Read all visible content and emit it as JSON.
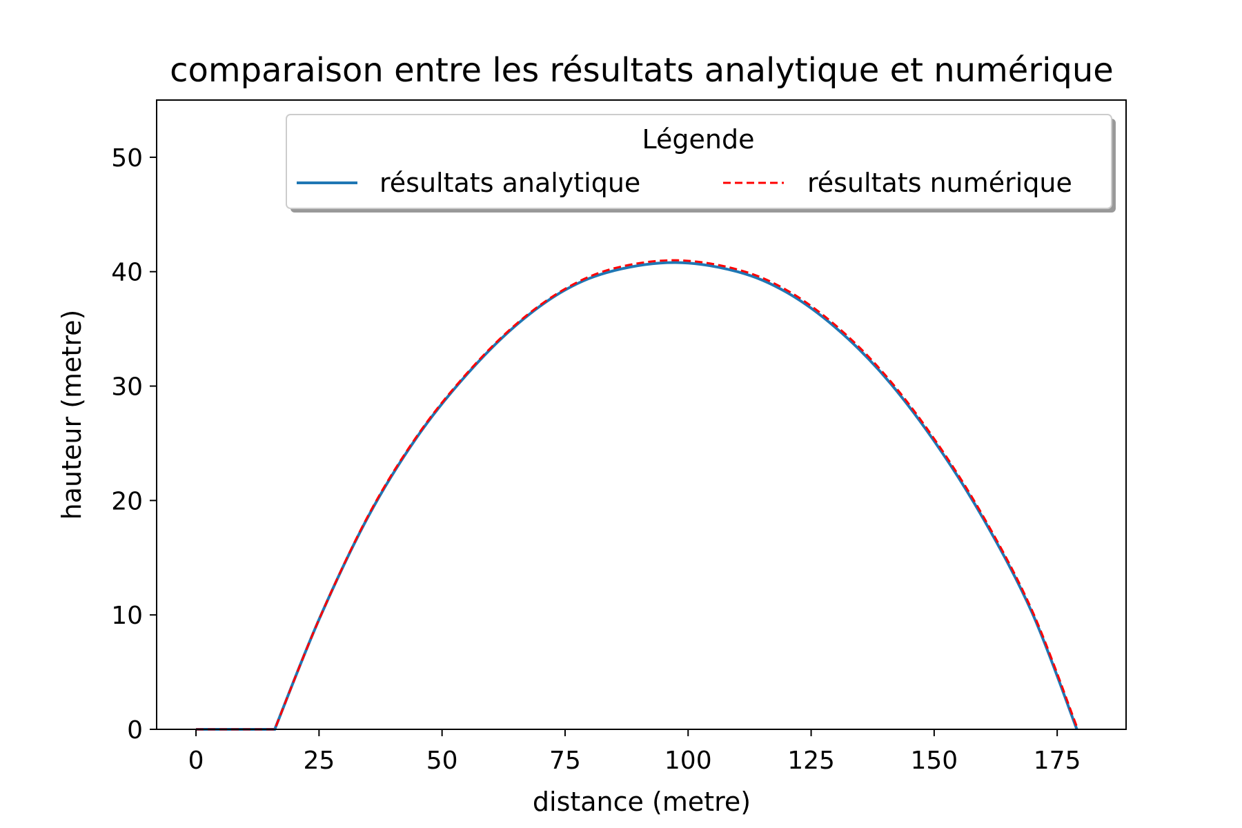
{
  "chart_data": {
    "type": "line",
    "title": "comparaison entre les résultats analytique et numérique",
    "xlabel": "distance (metre)",
    "ylabel": "hauteur (metre)",
    "xlim": [
      -8,
      189
    ],
    "ylim": [
      0,
      55
    ],
    "xticks": [
      0,
      25,
      50,
      75,
      100,
      125,
      150,
      175
    ],
    "yticks": [
      0,
      10,
      20,
      30,
      40,
      50
    ],
    "grid": false,
    "legend": {
      "title": "Légende",
      "title_color": "#ff0000",
      "placement": "top-center",
      "columns": 2
    },
    "series": [
      {
        "name": "résultats analytique",
        "color": "#1f77b4",
        "style": "solid",
        "x": [
          0,
          16,
          25,
          35,
          45,
          55,
          65,
          75,
          85,
          97.5,
          110,
          120,
          130,
          140,
          150,
          160,
          170,
          179
        ],
        "y": [
          0,
          0,
          9.6,
          18.6,
          25.6,
          31.0,
          35.3,
          38.4,
          40.1,
          40.8,
          40.0,
          38.2,
          35.1,
          30.8,
          25.2,
          18.4,
          10.1,
          0
        ]
      },
      {
        "name": "résultats numérique",
        "color": "#ff0000",
        "style": "dashed",
        "x": [
          0,
          16,
          25,
          35,
          45,
          55,
          65,
          75,
          85,
          97.5,
          110,
          120,
          130,
          140,
          150,
          160,
          170,
          179.2
        ],
        "y": [
          0,
          0,
          9.6,
          18.7,
          25.7,
          31.1,
          35.4,
          38.5,
          40.3,
          41.0,
          40.2,
          38.4,
          35.3,
          31.0,
          25.4,
          18.6,
          10.3,
          0
        ]
      }
    ]
  }
}
